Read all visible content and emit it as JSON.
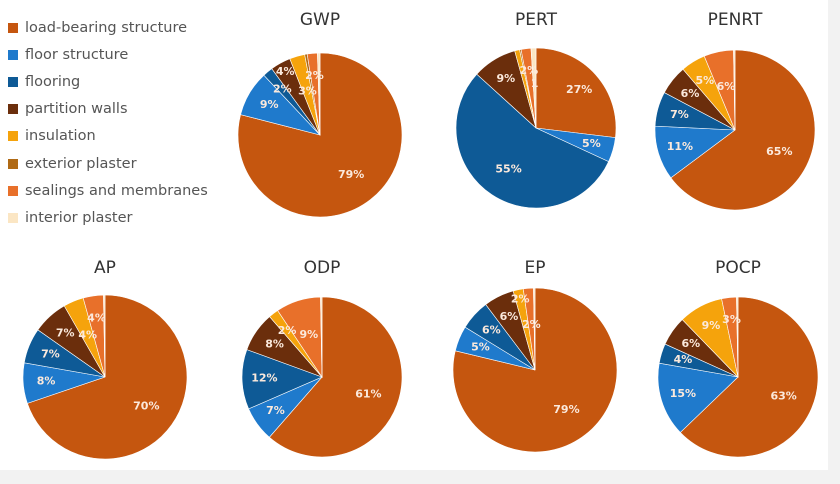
{
  "legend": [
    {
      "label": "load-bearing structure",
      "color": "#c5560f"
    },
    {
      "label": "floor structure",
      "color": "#1f7acc"
    },
    {
      "label": "flooring",
      "color": "#0e5a96"
    },
    {
      "label": "partition walls",
      "color": "#6b2e0c"
    },
    {
      "label": "insulation",
      "color": "#f5a30c"
    },
    {
      "label": "exterior plaster",
      "color": "#b06a15"
    },
    {
      "label": "sealings and membranes",
      "color": "#e8702a"
    },
    {
      "label": "interior plaster",
      "color": "#fbe6c4"
    }
  ],
  "chart_data": [
    {
      "type": "pie",
      "title": "GWP",
      "values": [
        79,
        9,
        2,
        4,
        3,
        0.5,
        2,
        0.5
      ],
      "labels": [
        "79%",
        "9%",
        "2%",
        "4%",
        "3%",
        "",
        "2%",
        ""
      ]
    },
    {
      "type": "pie",
      "title": "PERT",
      "values": [
        27,
        5,
        55,
        9,
        1,
        0.3,
        2,
        1
      ],
      "labels": [
        "27%",
        "5%",
        "55%",
        "9%",
        "",
        "",
        "2%",
        "1"
      ]
    },
    {
      "type": "pie",
      "title": "PENRT",
      "values": [
        65,
        11,
        7,
        6,
        5,
        0,
        6,
        0.3
      ],
      "labels": [
        "65%",
        "11%",
        "7%",
        "6%",
        "5%",
        "",
        "6%",
        ""
      ]
    },
    {
      "type": "pie",
      "title": "AP",
      "values": [
        70,
        8,
        7,
        7,
        4,
        0,
        4,
        0.3
      ],
      "labels": [
        "70%",
        "8%",
        "7%",
        "7%",
        "4%",
        "",
        "4%",
        ""
      ]
    },
    {
      "type": "pie",
      "title": "ODP",
      "values": [
        61,
        7,
        12,
        8,
        2,
        0,
        9,
        0.3
      ],
      "labels": [
        "61%",
        "7%",
        "12%",
        "8%",
        "2%",
        "",
        "9%",
        ""
      ]
    },
    {
      "type": "pie",
      "title": "EP",
      "values": [
        79,
        5,
        6,
        6,
        2,
        0,
        2,
        0.3
      ],
      "labels": [
        "79%",
        "5%",
        "6%",
        "6%",
        "2%",
        "",
        "2%",
        ""
      ]
    },
    {
      "type": "pie",
      "title": "POCP",
      "values": [
        63,
        15,
        4,
        6,
        9,
        0,
        3,
        0.3
      ],
      "labels": [
        "63%",
        "15%",
        "4%",
        "6%",
        "9%",
        "",
        "3%",
        ""
      ]
    }
  ]
}
